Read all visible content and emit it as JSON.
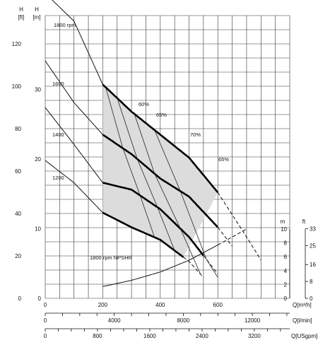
{
  "chart_data": {
    "type": "line",
    "title": "",
    "axes": {
      "left_outer": {
        "label": "H",
        "unit": "[ft]",
        "range": [
          0,
          133.3
        ],
        "ticks": [
          "0",
          "20",
          "40",
          "60",
          "80",
          "100",
          "120"
        ],
        "tick_values": [
          0,
          20,
          40,
          60,
          80,
          100,
          120
        ]
      },
      "left_inner": {
        "label": "H",
        "unit": "[m]",
        "range": [
          0,
          40.6
        ],
        "ticks": [
          "0",
          "10",
          "20",
          "30"
        ],
        "tick_values": [
          0,
          10,
          20,
          30
        ]
      },
      "x_m3h": {
        "label": "Q[m³/h]",
        "range": [
          0,
          850
        ],
        "ticks": [
          "0",
          "200",
          "400",
          "600"
        ],
        "tick_values": [
          0,
          200,
          400,
          600
        ]
      },
      "x_lmin": {
        "label": "Q[l/min]",
        "range": [
          0,
          14167
        ],
        "ticks": [
          "0",
          "4000",
          "8000",
          "12000"
        ],
        "tick_values": [
          0,
          4000,
          8000,
          12000
        ]
      },
      "x_usgpm": {
        "label": "Q[USgpm]",
        "range": [
          0,
          3742
        ],
        "ticks": [
          "0",
          "800",
          "1600",
          "2400",
          "3200"
        ],
        "tick_values": [
          0,
          800,
          1600,
          2400,
          3200
        ]
      },
      "npsh_m": {
        "label": "m",
        "range": [
          0,
          10
        ],
        "ticks": [
          "0",
          "2",
          "4",
          "6",
          "8",
          "10"
        ],
        "tick_values": [
          0,
          2,
          4,
          6,
          8,
          10
        ]
      },
      "npsh_ft": {
        "label": "ft",
        "ticks": [
          "0",
          "8",
          "16",
          "25",
          "33"
        ],
        "tick_values": [
          0,
          8,
          16,
          25,
          33
        ]
      }
    },
    "series": [
      {
        "name": "1800 rpm",
        "x": [
          0,
          100,
          200,
          300,
          400,
          500,
          600,
          700,
          750
        ],
        "y": [
          43.8,
          39.8,
          30.7,
          26.8,
          23.5,
          20.2,
          15.2,
          8.8,
          5.5
        ],
        "bold_range": [
          200,
          600
        ]
      },
      {
        "name": "1600",
        "x": [
          0,
          100,
          200,
          300,
          400,
          500,
          600,
          650
        ],
        "y": [
          34.1,
          28.1,
          23.5,
          20.7,
          17.2,
          14.6,
          10.2,
          7.5
        ],
        "bold_range": [
          200,
          600
        ]
      },
      {
        "name": "1400",
        "x": [
          0,
          100,
          200,
          300,
          400,
          500,
          600
        ],
        "y": [
          27.4,
          22.1,
          16.6,
          15.6,
          12.8,
          8.8,
          3.5
        ],
        "bold_range": [
          200,
          550
        ]
      },
      {
        "name": "1200",
        "x": [
          0,
          100,
          200,
          300,
          400,
          500,
          550
        ],
        "y": [
          19.8,
          16.6,
          12.3,
          10.2,
          8.4,
          5.3,
          3.0
        ],
        "bold_range": [
          200,
          480
        ]
      }
    ],
    "npsh": {
      "name": "1800 rpm NPSHR",
      "x": [
        200,
        300,
        400,
        500,
        600,
        700
      ],
      "y_m": [
        1.7,
        2.6,
        3.8,
        5.5,
        7.7,
        10.0
      ],
      "bold_range": [
        200,
        600
      ]
    },
    "efficiency_labels": [
      "60%",
      "65%",
      "70%",
      "65%"
    ],
    "operating_region": "shaded"
  }
}
